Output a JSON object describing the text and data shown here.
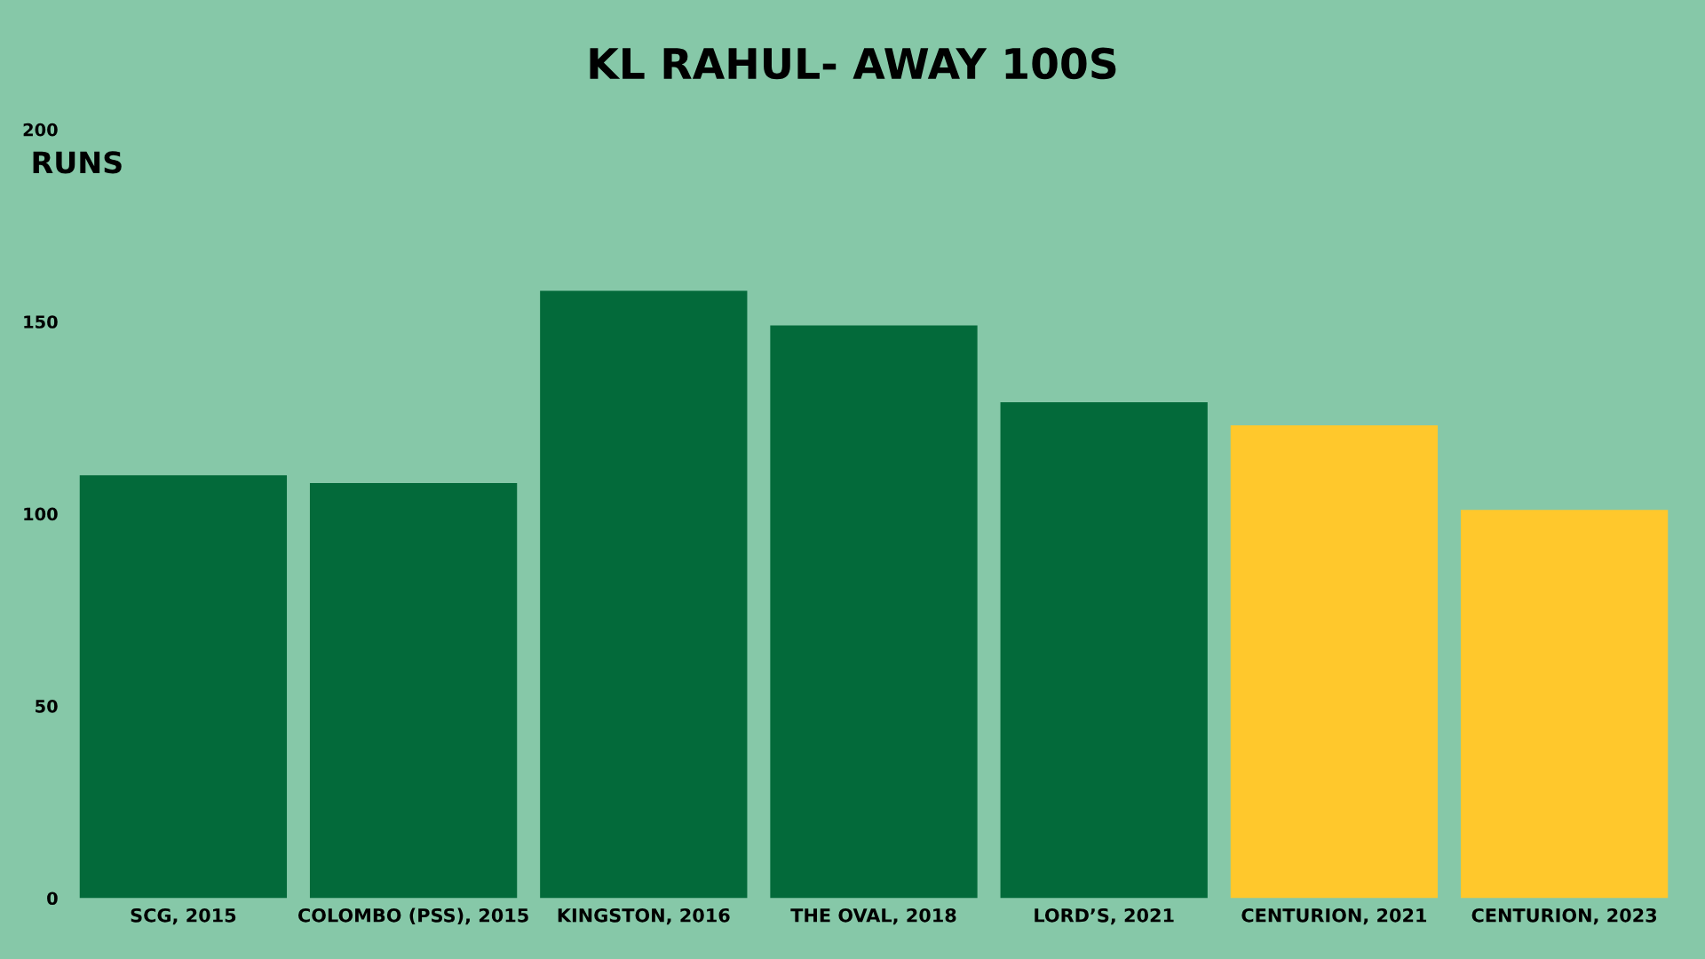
{
  "chart_data": {
    "type": "bar",
    "title": "KL RAHUL- AWAY 100S",
    "ylabel": "RUNS",
    "categories": [
      "SCG, 2015",
      "COLOMBO (PSS), 2015",
      "KINGSTON, 2016",
      "THE OVAL, 2018",
      "LORD’S, 2021",
      "CENTURION, 2021",
      "CENTURION, 2023"
    ],
    "values": [
      110,
      108,
      158,
      149,
      129,
      123,
      101
    ],
    "colors": [
      "#036a3a",
      "#036a3a",
      "#036a3a",
      "#036a3a",
      "#036a3a",
      "#ffc82c",
      "#ffc82c"
    ],
    "ylim": [
      0,
      200
    ],
    "yticks": [
      0,
      50,
      100,
      150,
      200
    ],
    "grid": false,
    "legend": false
  }
}
